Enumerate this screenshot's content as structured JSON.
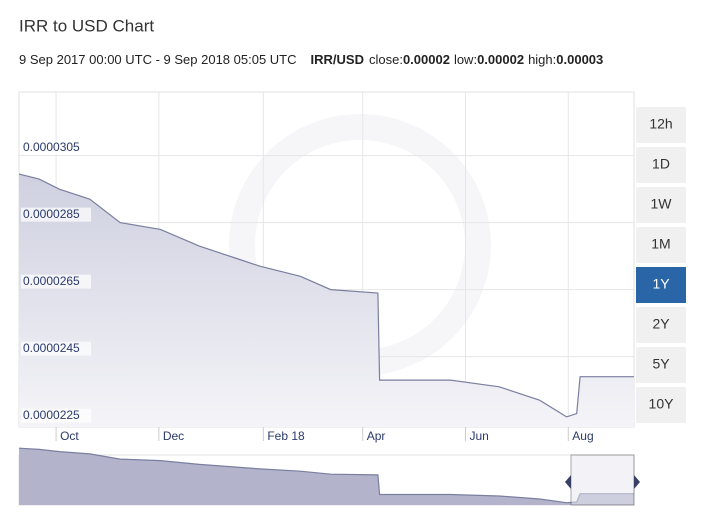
{
  "header": {
    "title": "IRR to USD Chart",
    "range": "9 Sep 2017 00:00 UTC - 9 Sep 2018 05:05 UTC",
    "pair": "IRR/USD",
    "stats": [
      {
        "label": "close:",
        "value": 2e-05
      },
      {
        "label": "low:",
        "value": 2e-05
      },
      {
        "label": "high:",
        "value": 3e-05
      }
    ]
  },
  "ranges": {
    "buttons": [
      "12h",
      "1D",
      "1W",
      "1M",
      "1Y",
      "2Y",
      "5Y",
      "10Y"
    ],
    "active": "1Y"
  },
  "chart_data": {
    "type": "area",
    "x": [
      "2017-09-09",
      "2017-09-21",
      "2017-10-03",
      "2017-10-21",
      "2017-11-08",
      "2017-12-02",
      "2017-12-25",
      "2018-01-18",
      "2018-01-30",
      "2018-02-23",
      "2018-03-13",
      "2018-04-10",
      "2018-04-11",
      "2018-05-23",
      "2018-06-21",
      "2018-07-15",
      "2018-07-31",
      "2018-08-06",
      "2018-08-08",
      "2018-09-09"
    ],
    "series": [
      {
        "name": "IRR/USD",
        "color": "#7a7fa0",
        "values": [
          2.995e-05,
          2.98e-05,
          2.95e-05,
          2.92e-05,
          2.85e-05,
          2.83e-05,
          2.78e-05,
          2.74e-05,
          2.72e-05,
          2.69e-05,
          2.65e-05,
          2.64e-05,
          2.38e-05,
          2.38e-05,
          2.36e-05,
          2.32e-05,
          2.27e-05,
          2.28e-05,
          2.39e-05,
          2.39e-05
        ]
      }
    ],
    "xlim": [
      "2017-09-09",
      "2018-09-09"
    ],
    "xticks": [
      {
        "value": "2017-10-01",
        "label": "Oct"
      },
      {
        "value": "2017-12-01",
        "label": "Dec"
      },
      {
        "value": "2018-02-01",
        "label": "Feb 18"
      },
      {
        "value": "2018-04-01",
        "label": "Apr"
      },
      {
        "value": "2018-06-01",
        "label": "Jun"
      },
      {
        "value": "2018-08-01",
        "label": "Aug"
      }
    ],
    "ylim": [
      2.24e-05,
      3.24e-05
    ],
    "yticks": [
      2.25e-05,
      2.45e-05,
      2.65e-05,
      2.85e-05,
      3.05e-05
    ],
    "grid": true
  }
}
